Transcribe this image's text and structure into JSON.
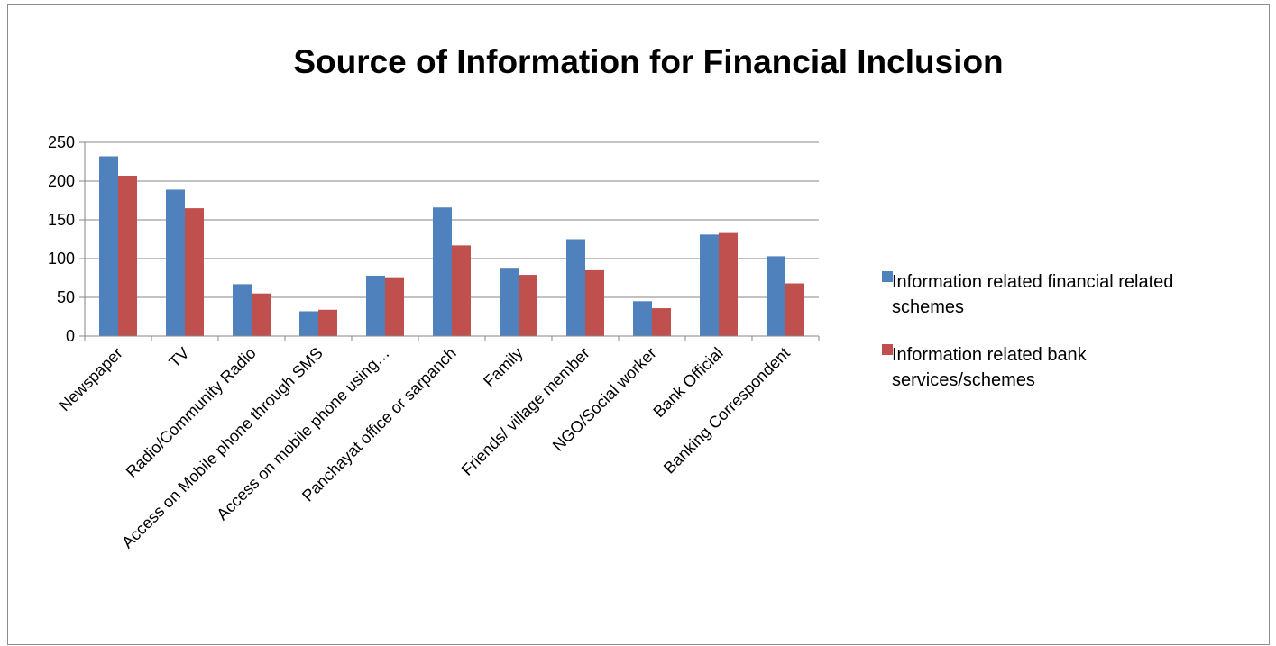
{
  "chart_data": {
    "type": "bar",
    "title": "Source of Information for Financial Inclusion",
    "categories": [
      "Newspaper",
      "TV",
      "Radio/Community Radio",
      "Access on Mobile phone through SMS",
      "Access on mobile phone using…",
      "Panchayat office or sarpanch",
      "Family",
      "Friends/ village member",
      "NGO/Social worker",
      "Bank Official",
      "Banking Correspondent"
    ],
    "series": [
      {
        "name": "Information related financial related schemes",
        "color": "#4f81bd",
        "values": [
          232,
          189,
          67,
          32,
          78,
          166,
          87,
          125,
          45,
          131,
          103
        ]
      },
      {
        "name": "Information related bank services/schemes",
        "color": "#c0504d",
        "values": [
          207,
          165,
          55,
          34,
          76,
          117,
          79,
          85,
          36,
          133,
          68
        ]
      }
    ],
    "y_ticks": [
      "250",
      "200",
      "150",
      "100",
      "50",
      "0"
    ],
    "ylim": [
      0,
      250
    ],
    "grid": true,
    "legend_position": "right",
    "legend": [
      {
        "lines": [
          "Information related financial related",
          "schemes"
        ]
      },
      {
        "lines": [
          "Information related bank",
          "services/schemes"
        ]
      }
    ]
  }
}
